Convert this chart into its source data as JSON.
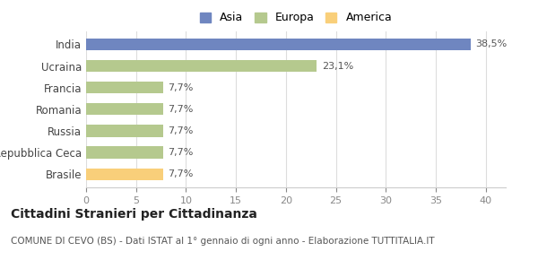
{
  "categories": [
    "India",
    "Ucraina",
    "Francia",
    "Romania",
    "Russia",
    "Repubblica Ceca",
    "Brasile"
  ],
  "values": [
    38.5,
    23.1,
    7.7,
    7.7,
    7.7,
    7.7,
    7.7
  ],
  "colors": [
    "#6f86c0",
    "#b5c98e",
    "#b5c98e",
    "#b5c98e",
    "#b5c98e",
    "#b5c98e",
    "#f9cf7a"
  ],
  "labels": [
    "38,5%",
    "23,1%",
    "7,7%",
    "7,7%",
    "7,7%",
    "7,7%",
    "7,7%"
  ],
  "legend_labels": [
    "Asia",
    "Europa",
    "America"
  ],
  "legend_colors": [
    "#6f86c0",
    "#b5c98e",
    "#f9cf7a"
  ],
  "xlim": [
    0,
    42
  ],
  "xticks": [
    0,
    5,
    10,
    15,
    20,
    25,
    30,
    35,
    40
  ],
  "title": "Cittadini Stranieri per Cittadinanza",
  "subtitle": "COMUNE DI CEVO (BS) - Dati ISTAT al 1° gennaio di ogni anno - Elaborazione TUTTITALIA.IT",
  "title_fontsize": 10,
  "subtitle_fontsize": 7.5,
  "background_color": "#ffffff",
  "bar_height": 0.55
}
